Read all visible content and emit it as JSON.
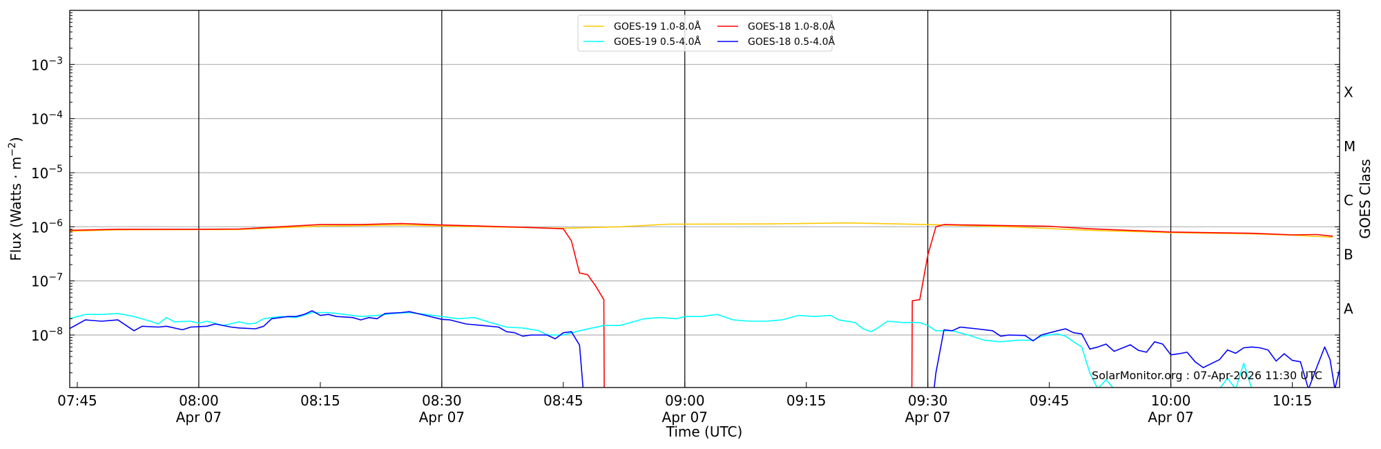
{
  "chart_data": {
    "type": "line",
    "xlabel": "Time (UTC)",
    "ylabel": "Flux (Watts · m",
    "ylabel_sup": "−2",
    "ylabel_close": ")",
    "right_label": "GOES Class",
    "yscale": "log",
    "xlim": [
      "07:44:04",
      "10:20:50"
    ],
    "ylim": [
      1.07e-09,
      0.01
    ],
    "ytick_exponents": [
      "−3",
      "−4",
      "−5",
      "−6",
      "−7",
      "−8"
    ],
    "ytick_values": [
      0.001,
      0.0001,
      1e-05,
      1e-06,
      1e-07,
      1e-08
    ],
    "x_ticks": [
      {
        "t": "07:45",
        "l": "07:45",
        "d": ""
      },
      {
        "t": "08:00",
        "l": "08:00",
        "d": "Apr 07"
      },
      {
        "t": "08:15",
        "l": "08:15",
        "d": ""
      },
      {
        "t": "08:30",
        "l": "08:30",
        "d": "Apr 07"
      },
      {
        "t": "08:45",
        "l": "08:45",
        "d": ""
      },
      {
        "t": "09:00",
        "l": "09:00",
        "d": "Apr 07"
      },
      {
        "t": "09:15",
        "l": "09:15",
        "d": ""
      },
      {
        "t": "09:30",
        "l": "09:30",
        "d": "Apr 07"
      },
      {
        "t": "09:45",
        "l": "09:45",
        "d": ""
      },
      {
        "t": "10:00",
        "l": "10:00",
        "d": "Apr 07"
      },
      {
        "t": "10:15",
        "l": "10:15",
        "d": ""
      }
    ],
    "vertical_lines": [
      "08:00",
      "08:30",
      "09:00",
      "09:30",
      "10:00"
    ],
    "classes": [
      {
        "l": "A",
        "v": 3.16e-08
      },
      {
        "l": "B",
        "v": 3.16e-07
      },
      {
        "l": "C",
        "v": 3.16e-06
      },
      {
        "l": "M",
        "v": 3.16e-05
      },
      {
        "l": "X",
        "v": 0.000316
      }
    ],
    "grid": "horizontal at decades",
    "legend_placement": "top-center",
    "annotation": "SolarMonitor.org : 07-Apr-2026 11:30 UTC",
    "series": [
      {
        "name": "GOES-19 1.0-8.0Å",
        "color": "#ffc800",
        "points": [
          [
            "07:44",
            8.3e-07
          ],
          [
            "07:50",
            8.8e-07
          ],
          [
            "08:00",
            8.9e-07
          ],
          [
            "08:05",
            8.9e-07
          ],
          [
            "08:10",
            9.6e-07
          ],
          [
            "08:15",
            1.03e-06
          ],
          [
            "08:25",
            1.08e-06
          ],
          [
            "08:35",
            1e-06
          ],
          [
            "08:45",
            9.4e-07
          ],
          [
            "08:52",
            1e-06
          ],
          [
            "08:58",
            1.12e-06
          ],
          [
            "09:10",
            1.13e-06
          ],
          [
            "09:20",
            1.18e-06
          ],
          [
            "09:30",
            1.1e-06
          ],
          [
            "09:40",
            1e-06
          ],
          [
            "09:50",
            8.6e-07
          ],
          [
            "10:00",
            7.8e-07
          ],
          [
            "10:10",
            7.4e-07
          ],
          [
            "10:15",
            7e-07
          ],
          [
            "10:20",
            6.4e-07
          ]
        ]
      },
      {
        "name": "GOES-18 1.0-8.0Å",
        "color": "#ff0000",
        "points": [
          [
            "07:44",
            8.6e-07
          ],
          [
            "07:50",
            9e-07
          ],
          [
            "08:00",
            9e-07
          ],
          [
            "08:05",
            9.1e-07
          ],
          [
            "08:10",
            1e-06
          ],
          [
            "08:15",
            1.1e-06
          ],
          [
            "08:20",
            1.1e-06
          ],
          [
            "08:25",
            1.15e-06
          ],
          [
            "08:30",
            1.08e-06
          ],
          [
            "08:35",
            1.03e-06
          ],
          [
            "08:40",
            9.8e-07
          ],
          [
            "08:45",
            9.2e-07
          ],
          [
            "08:46",
            5.5e-07
          ],
          [
            "08:47",
            1.4e-07
          ],
          [
            "08:48",
            1.3e-07
          ],
          [
            "08:49",
            8e-08
          ],
          [
            "08:50",
            4.5e-08
          ],
          [
            "08:50:05",
            1e-10
          ],
          null,
          [
            "09:28",
            1e-10
          ],
          [
            "09:28:05",
            4.3e-08
          ],
          [
            "09:29",
            4.5e-08
          ],
          [
            "09:30",
            3e-07
          ],
          [
            "09:31",
            1e-06
          ],
          [
            "09:32",
            1.1e-06
          ],
          [
            "09:40",
            1.05e-06
          ],
          [
            "09:45",
            1.02e-06
          ],
          [
            "09:50",
            9.2e-07
          ],
          [
            "10:00",
            8e-07
          ],
          [
            "10:10",
            7.6e-07
          ],
          [
            "10:15",
            7.1e-07
          ],
          [
            "10:18",
            7.2e-07
          ],
          [
            "10:20",
            6.7e-07
          ]
        ]
      },
      {
        "name": "GOES-19 0.5-4.0Å",
        "color": "#00ffff",
        "points": [
          [
            "07:44",
            2e-08
          ],
          [
            "07:46",
            2.4e-08
          ],
          [
            "07:48",
            2.4e-08
          ],
          [
            "07:50",
            2.5e-08
          ],
          [
            "07:52",
            2.2e-08
          ],
          [
            "07:54",
            1.8e-08
          ],
          [
            "07:55",
            1.6e-08
          ],
          [
            "07:56",
            2.1e-08
          ],
          [
            "07:57",
            1.75e-08
          ],
          [
            "07:59",
            1.8e-08
          ],
          [
            "08:00",
            1.65e-08
          ],
          [
            "08:01",
            1.8e-08
          ],
          [
            "08:03",
            1.5e-08
          ],
          [
            "08:05",
            1.75e-08
          ],
          [
            "08:06",
            1.6e-08
          ],
          [
            "08:07",
            1.65e-08
          ],
          [
            "08:08",
            2e-08
          ],
          [
            "08:10",
            2.2e-08
          ],
          [
            "08:12",
            2.1e-08
          ],
          [
            "08:14",
            2.6e-08
          ],
          [
            "08:16",
            2.6e-08
          ],
          [
            "08:18",
            2.4e-08
          ],
          [
            "08:20",
            2.2e-08
          ],
          [
            "08:22",
            2.3e-08
          ],
          [
            "08:24",
            2.5e-08
          ],
          [
            "08:26",
            2.6e-08
          ],
          [
            "08:28",
            2.4e-08
          ],
          [
            "08:30",
            2.2e-08
          ],
          [
            "08:32",
            2e-08
          ],
          [
            "08:34",
            2.1e-08
          ],
          [
            "08:36",
            1.7e-08
          ],
          [
            "08:38",
            1.4e-08
          ],
          [
            "08:40",
            1.35e-08
          ],
          [
            "08:42",
            1.2e-08
          ],
          [
            "08:43",
            1e-08
          ],
          [
            "08:45",
            1e-08
          ],
          [
            "08:47",
            1.2e-08
          ],
          [
            "08:50",
            1.5e-08
          ],
          [
            "08:52",
            1.5e-08
          ],
          [
            "08:55",
            2e-08
          ],
          [
            "08:57",
            2.1e-08
          ],
          [
            "08:59",
            2e-08
          ],
          [
            "09:00",
            2.2e-08
          ],
          [
            "09:02",
            2.2e-08
          ],
          [
            "09:04",
            2.4e-08
          ],
          [
            "09:06",
            1.9e-08
          ],
          [
            "09:08",
            1.8e-08
          ],
          [
            "09:10",
            1.8e-08
          ],
          [
            "09:12",
            1.9e-08
          ],
          [
            "09:14",
            2.3e-08
          ],
          [
            "09:16",
            2.2e-08
          ],
          [
            "09:18",
            2.3e-08
          ],
          [
            "09:19",
            1.9e-08
          ],
          [
            "09:21",
            1.7e-08
          ],
          [
            "09:22",
            1.3e-08
          ],
          [
            "09:23",
            1.15e-08
          ],
          [
            "09:24",
            1.4e-08
          ],
          [
            "09:25",
            1.8e-08
          ],
          [
            "09:27",
            1.7e-08
          ],
          [
            "09:29",
            1.7e-08
          ],
          [
            "09:30",
            1.5e-08
          ],
          [
            "09:31",
            1.2e-08
          ],
          [
            "09:33",
            1.2e-08
          ],
          [
            "09:35",
            1e-08
          ],
          [
            "09:37",
            8e-09
          ],
          [
            "09:39",
            7.5e-09
          ],
          [
            "09:41",
            8e-09
          ],
          [
            "09:43",
            8e-09
          ],
          [
            "09:44",
            9.5e-09
          ],
          [
            "09:46",
            1.05e-08
          ],
          [
            "09:47",
            9.5e-09
          ],
          [
            "09:48",
            7.5e-09
          ],
          [
            "09:49",
            6e-09
          ],
          [
            "09:50",
            2e-09
          ],
          [
            "09:51",
            1e-09
          ],
          [
            "09:52",
            1.5e-09
          ],
          [
            "09:53",
            1e-09
          ],
          [
            "10:06",
            1e-09
          ],
          [
            "10:07",
            1.6e-09
          ],
          [
            "10:08",
            1e-09
          ],
          [
            "10:09",
            3e-09
          ],
          [
            "10:10",
            1e-09
          ],
          [
            "10:20",
            1e-09
          ]
        ]
      },
      {
        "name": "GOES-18 0.5-4.0Å",
        "color": "#0000ff",
        "points": [
          [
            "07:44",
            1.3e-08
          ],
          [
            "07:46",
            1.9e-08
          ],
          [
            "07:48",
            1.8e-08
          ],
          [
            "07:50",
            1.9e-08
          ],
          [
            "07:52",
            1.2e-08
          ],
          [
            "07:53",
            1.45e-08
          ],
          [
            "07:55",
            1.4e-08
          ],
          [
            "07:56",
            1.45e-08
          ],
          [
            "07:58",
            1.25e-08
          ],
          [
            "07:59",
            1.4e-08
          ],
          [
            "08:01",
            1.45e-08
          ],
          [
            "08:02",
            1.6e-08
          ],
          [
            "08:04",
            1.4e-08
          ],
          [
            "08:05",
            1.35e-08
          ],
          [
            "08:07",
            1.3e-08
          ],
          [
            "08:08",
            1.45e-08
          ],
          [
            "08:09",
            2e-08
          ],
          [
            "08:11",
            2.2e-08
          ],
          [
            "08:12",
            2.2e-08
          ],
          [
            "08:13",
            2.4e-08
          ],
          [
            "08:14",
            2.8e-08
          ],
          [
            "08:15",
            2.3e-08
          ],
          [
            "08:16",
            2.4e-08
          ],
          [
            "08:17",
            2.2e-08
          ],
          [
            "08:19",
            2.1e-08
          ],
          [
            "08:20",
            1.9e-08
          ],
          [
            "08:21",
            2.1e-08
          ],
          [
            "08:22",
            2e-08
          ],
          [
            "08:23",
            2.5e-08
          ],
          [
            "08:25",
            2.6e-08
          ],
          [
            "08:26",
            2.7e-08
          ],
          [
            "08:28",
            2.3e-08
          ],
          [
            "08:30",
            1.95e-08
          ],
          [
            "08:31",
            1.9e-08
          ],
          [
            "08:33",
            1.6e-08
          ],
          [
            "08:35",
            1.5e-08
          ],
          [
            "08:37",
            1.4e-08
          ],
          [
            "08:38",
            1.15e-08
          ],
          [
            "08:39",
            1.1e-08
          ],
          [
            "08:40",
            9.5e-09
          ],
          [
            "08:41",
            1e-08
          ],
          [
            "08:43",
            1e-08
          ],
          [
            "08:44",
            8.5e-09
          ],
          [
            "08:45",
            1.1e-08
          ],
          [
            "08:46",
            1.15e-08
          ],
          [
            "08:47",
            6.5e-09
          ],
          [
            "08:48",
            1e-10
          ],
          null,
          [
            "09:30",
            1e-10
          ],
          [
            "09:31",
            2e-09
          ],
          [
            "09:32",
            1.25e-08
          ],
          [
            "09:33",
            1.2e-08
          ],
          [
            "09:34",
            1.4e-08
          ],
          [
            "09:36",
            1.3e-08
          ],
          [
            "09:38",
            1.2e-08
          ],
          [
            "09:39",
            9.5e-09
          ],
          [
            "09:40",
            1e-08
          ],
          [
            "09:42",
            9.8e-09
          ],
          [
            "09:43",
            7.8e-09
          ],
          [
            "09:44",
            1e-08
          ],
          [
            "09:46",
            1.2e-08
          ],
          [
            "09:47",
            1.3e-08
          ],
          [
            "09:48",
            1.1e-08
          ],
          [
            "09:49",
            1.05e-08
          ],
          [
            "09:50",
            5.5e-09
          ],
          [
            "09:51",
            6e-09
          ],
          [
            "09:52",
            6.8e-09
          ],
          [
            "09:53",
            5e-09
          ],
          [
            "09:55",
            6.6e-09
          ],
          [
            "09:56",
            5.2e-09
          ],
          [
            "09:57",
            4.8e-09
          ],
          [
            "09:58",
            7.5e-09
          ],
          [
            "09:59",
            6.8e-09
          ],
          [
            "10:00",
            4.3e-09
          ],
          [
            "10:01",
            4.5e-09
          ],
          [
            "10:02",
            4.8e-09
          ],
          [
            "10:03",
            3.2e-09
          ],
          [
            "10:04",
            2.5e-09
          ],
          [
            "10:06",
            3.5e-09
          ],
          [
            "10:07",
            5.3e-09
          ],
          [
            "10:08",
            4.6e-09
          ],
          [
            "10:09",
            5.8e-09
          ],
          [
            "10:10",
            6e-09
          ],
          [
            "10:11",
            5.8e-09
          ],
          [
            "10:12",
            5.3e-09
          ],
          [
            "10:13",
            3.3e-09
          ],
          [
            "10:14",
            4.5e-09
          ],
          [
            "10:15",
            3.4e-09
          ],
          [
            "10:16",
            3.2e-09
          ],
          [
            "10:17",
            1e-09
          ],
          [
            "10:18",
            2.5e-09
          ],
          [
            "10:19",
            6e-09
          ],
          [
            "10:19:40",
            3.5e-09
          ],
          [
            "10:20:15",
            1e-09
          ],
          [
            "10:20:50",
            2.3e-09
          ]
        ]
      }
    ]
  }
}
